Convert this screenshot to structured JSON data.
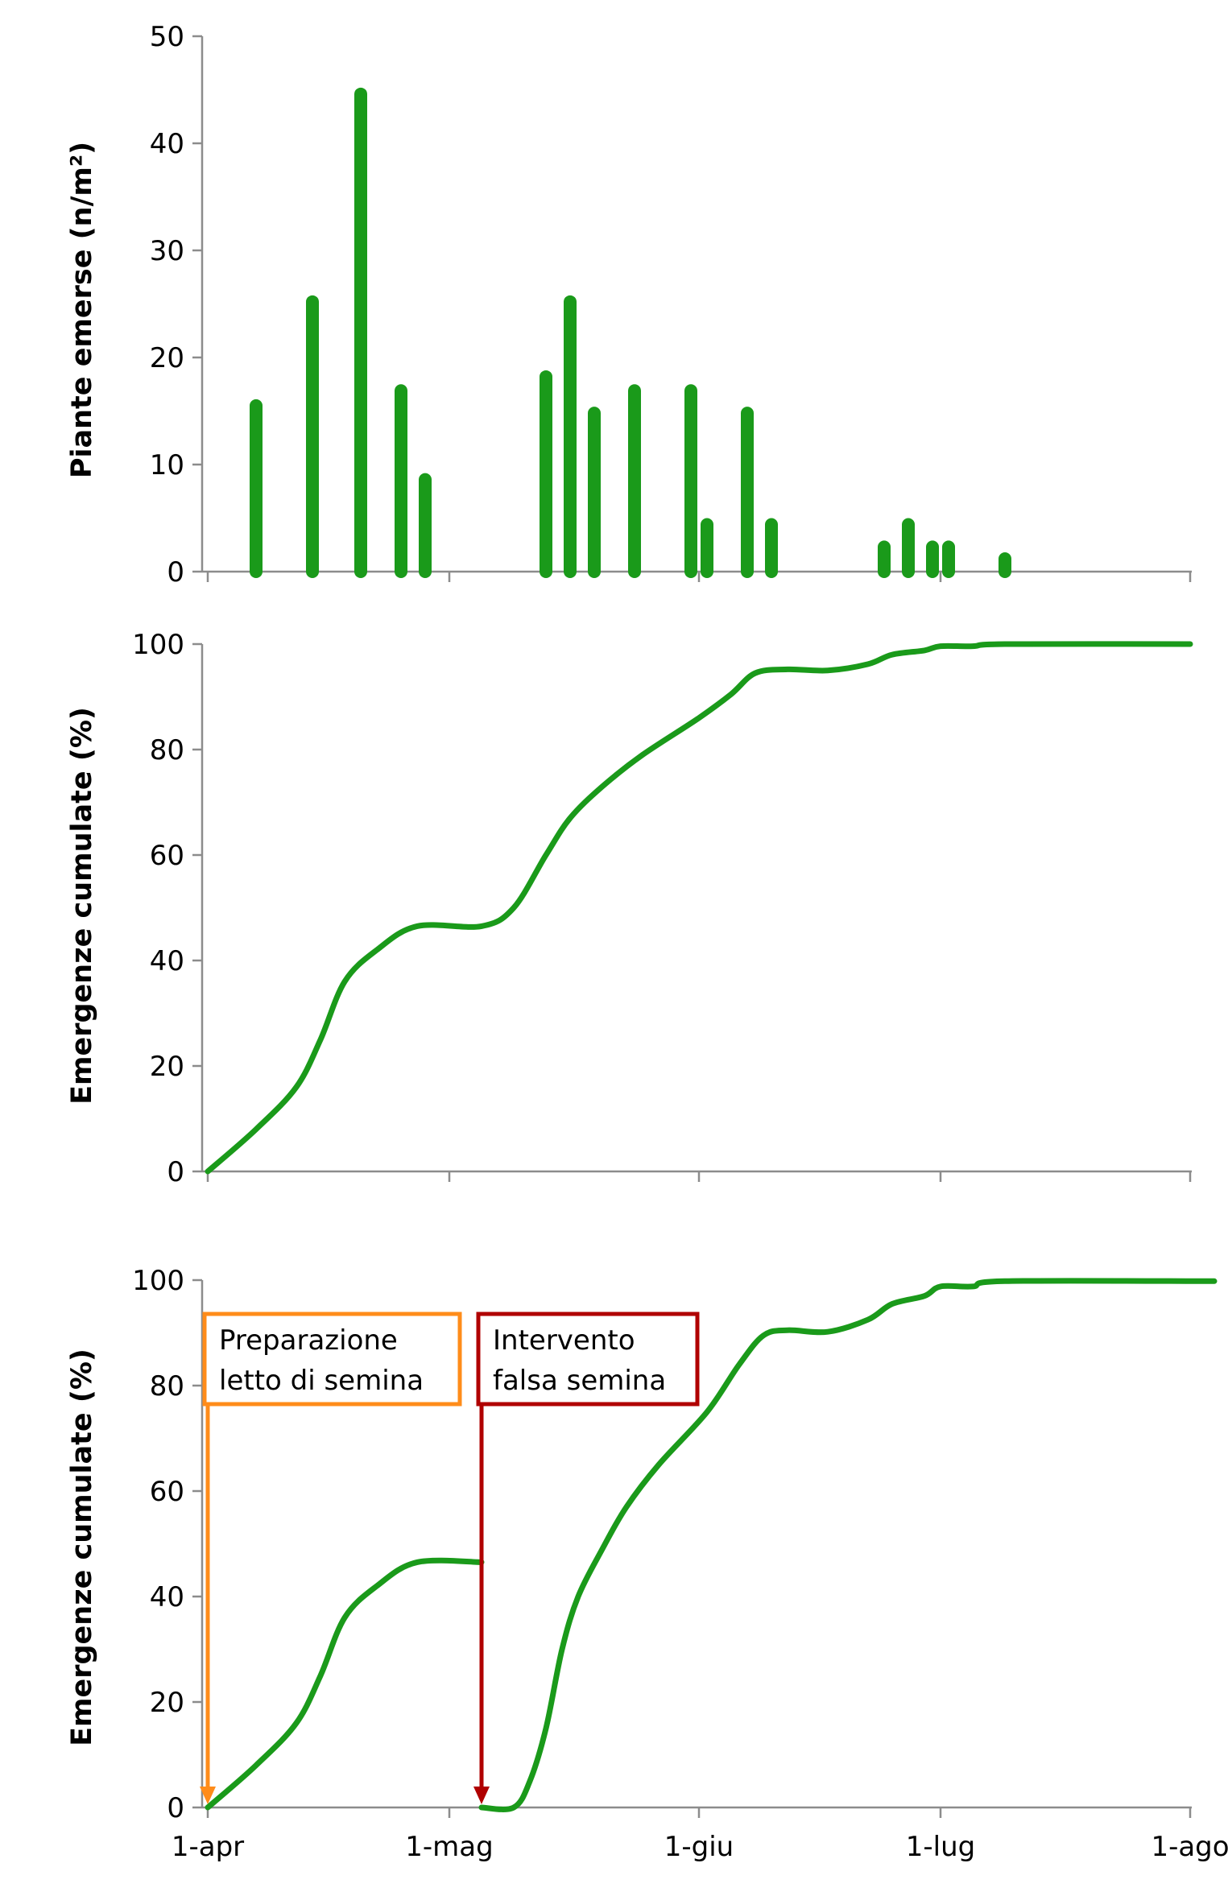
{
  "colors": {
    "series": "#1a9a1a",
    "axis": "#8c8c8c",
    "annotation_orange": "#ff8c1a",
    "annotation_red": "#b00000"
  },
  "x_tick_labels": [
    "1-apr",
    "1-mag",
    "1-giu",
    "1-lug",
    "1-ago"
  ],
  "chart_data": [
    {
      "type": "bar",
      "ylabel": "Piante emerse (n/m²)",
      "ylim": [
        0,
        50
      ],
      "yticks": [
        0,
        10,
        20,
        30,
        40,
        50
      ],
      "xlim": [
        "2013-04-01",
        "2013-08-01"
      ],
      "xticks": [
        "2013-04-01",
        "2013-05-01",
        "2013-06-01",
        "2013-07-01",
        "2013-08-01"
      ],
      "series": [
        {
          "points": [
            {
              "x": "2013-04-07",
              "y": 15.5
            },
            {
              "x": "2013-04-14",
              "y": 25.2
            },
            {
              "x": "2013-04-20",
              "y": 44.6
            },
            {
              "x": "2013-04-25",
              "y": 16.9
            },
            {
              "x": "2013-04-28",
              "y": 8.6
            },
            {
              "x": "2013-05-13",
              "y": 18.2
            },
            {
              "x": "2013-05-16",
              "y": 25.2
            },
            {
              "x": "2013-05-19",
              "y": 14.8
            },
            {
              "x": "2013-05-24",
              "y": 16.9
            },
            {
              "x": "2013-05-31",
              "y": 16.9
            },
            {
              "x": "2013-06-02",
              "y": 4.4
            },
            {
              "x": "2013-06-07",
              "y": 14.8
            },
            {
              "x": "2013-06-10",
              "y": 4.4
            },
            {
              "x": "2013-06-24",
              "y": 2.3
            },
            {
              "x": "2013-06-27",
              "y": 4.4
            },
            {
              "x": "2013-06-30",
              "y": 2.3
            },
            {
              "x": "2013-07-02",
              "y": 2.3
            },
            {
              "x": "2013-07-09",
              "y": 1.2
            }
          ]
        }
      ]
    },
    {
      "type": "line",
      "ylabel": "Emergenze cumulate (%)",
      "ylim": [
        0,
        100
      ],
      "yticks": [
        0,
        20,
        40,
        60,
        80,
        100
      ],
      "xlim": [
        "2013-04-01",
        "2013-08-01"
      ],
      "xticks": [
        "2013-04-01",
        "2013-05-01",
        "2013-06-01",
        "2013-07-01",
        "2013-08-01"
      ],
      "series": [
        {
          "points": [
            {
              "x": "2013-04-01",
              "y": 0
            },
            {
              "x": "2013-04-07",
              "y": 8
            },
            {
              "x": "2013-04-12",
              "y": 16
            },
            {
              "x": "2013-04-15",
              "y": 25
            },
            {
              "x": "2013-04-18",
              "y": 36
            },
            {
              "x": "2013-04-22",
              "y": 42
            },
            {
              "x": "2013-04-27",
              "y": 46.5
            },
            {
              "x": "2013-05-05",
              "y": 46.5
            },
            {
              "x": "2013-05-09",
              "y": 50
            },
            {
              "x": "2013-05-13",
              "y": 60
            },
            {
              "x": "2013-05-16",
              "y": 67
            },
            {
              "x": "2013-05-20",
              "y": 73
            },
            {
              "x": "2013-05-25",
              "y": 79
            },
            {
              "x": "2013-06-01",
              "y": 86
            },
            {
              "x": "2013-06-05",
              "y": 90.5
            },
            {
              "x": "2013-06-08",
              "y": 94.5
            },
            {
              "x": "2013-06-12",
              "y": 95.2
            },
            {
              "x": "2013-06-17",
              "y": 95
            },
            {
              "x": "2013-06-22",
              "y": 96.2
            },
            {
              "x": "2013-06-25",
              "y": 98
            },
            {
              "x": "2013-06-29",
              "y": 98.8
            },
            {
              "x": "2013-07-01",
              "y": 99.6
            },
            {
              "x": "2013-07-05",
              "y": 99.6
            },
            {
              "x": "2013-07-09",
              "y": 100
            },
            {
              "x": "2013-08-01",
              "y": 100
            }
          ]
        }
      ]
    },
    {
      "type": "line",
      "ylabel": "Emergenze cumulate (%)",
      "ylim": [
        0,
        100
      ],
      "yticks": [
        0,
        20,
        40,
        60,
        80,
        100
      ],
      "xlim": [
        "2013-04-01",
        "2013-08-01"
      ],
      "xticks": [
        "2013-04-01",
        "2013-05-01",
        "2013-06-01",
        "2013-07-01",
        "2013-08-01"
      ],
      "series": [
        {
          "points": [
            {
              "x": "2013-04-01",
              "y": 0
            },
            {
              "x": "2013-04-07",
              "y": 8
            },
            {
              "x": "2013-04-12",
              "y": 16
            },
            {
              "x": "2013-04-15",
              "y": 25
            },
            {
              "x": "2013-04-18",
              "y": 36
            },
            {
              "x": "2013-04-22",
              "y": 42
            },
            {
              "x": "2013-04-27",
              "y": 46.5
            },
            {
              "x": "2013-05-05",
              "y": 46.5
            }
          ]
        },
        {
          "points": [
            {
              "x": "2013-05-05",
              "y": 0
            },
            {
              "x": "2013-05-09",
              "y": 0
            },
            {
              "x": "2013-05-11",
              "y": 5
            },
            {
              "x": "2013-05-13",
              "y": 15
            },
            {
              "x": "2013-05-15",
              "y": 30
            },
            {
              "x": "2013-05-17",
              "y": 40
            },
            {
              "x": "2013-05-20",
              "y": 49
            },
            {
              "x": "2013-05-23",
              "y": 57
            },
            {
              "x": "2013-05-27",
              "y": 65
            },
            {
              "x": "2013-06-02",
              "y": 75
            },
            {
              "x": "2013-06-06",
              "y": 84
            },
            {
              "x": "2013-06-09",
              "y": 89.5
            },
            {
              "x": "2013-06-12",
              "y": 90.5
            },
            {
              "x": "2013-06-17",
              "y": 90.2
            },
            {
              "x": "2013-06-22",
              "y": 92.5
            },
            {
              "x": "2013-06-25",
              "y": 95.5
            },
            {
              "x": "2013-06-29",
              "y": 97
            },
            {
              "x": "2013-07-01",
              "y": 98.8
            },
            {
              "x": "2013-07-05",
              "y": 98.8
            },
            {
              "x": "2013-07-09",
              "y": 99.8
            },
            {
              "x": "2013-08-04",
              "y": 99.8
            }
          ]
        }
      ],
      "annotations": [
        {
          "text_lines": [
            "Preparazione",
            "letto di semina"
          ],
          "x": "2013-04-01",
          "color": "orange"
        },
        {
          "text_lines": [
            "Intervento",
            "falsa semina"
          ],
          "x": "2013-05-05",
          "color": "red"
        }
      ]
    }
  ]
}
